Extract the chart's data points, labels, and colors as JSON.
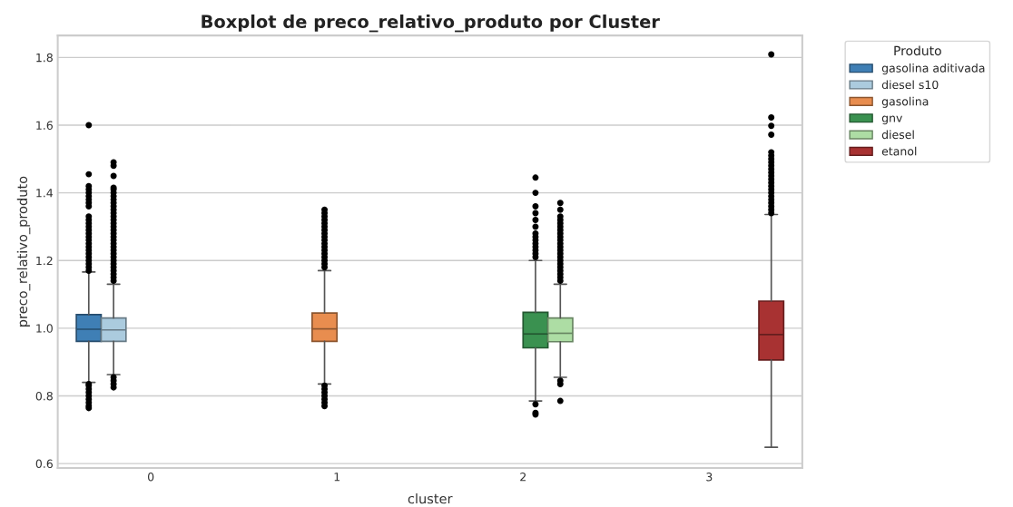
{
  "chart_data": {
    "type": "box",
    "title": "Boxplot de preco_relativo_produto por Cluster",
    "xlabel": "cluster",
    "ylabel": "preco_relativo_produto",
    "legend_title": "Produto",
    "legend": "top right",
    "grid": "y",
    "categories": [
      "0",
      "1",
      "2",
      "3"
    ],
    "ylim": [
      0.587,
      1.865
    ],
    "yticks": [
      {
        "value": 0.6,
        "label": "0.6"
      },
      {
        "value": 0.8,
        "label": "0.8"
      },
      {
        "value": 1.0,
        "label": "1.0"
      },
      {
        "value": 1.2,
        "label": "1.2"
      },
      {
        "value": 1.4,
        "label": "1.4"
      },
      {
        "value": 1.6,
        "label": "1.6"
      },
      {
        "value": 1.8,
        "label": "1.8"
      }
    ],
    "series": [
      {
        "name": "gasolina aditivada",
        "color": "#3f7fb5",
        "boxes": [
          {
            "low": 0.84,
            "q1": 0.961,
            "median": 0.997,
            "q3": 1.04,
            "high": 1.166,
            "outliers": [
              1.6,
              1.455,
              1.42,
              1.41,
              1.4,
              1.39,
              1.38,
              1.37,
              1.36,
              1.33,
              1.32,
              1.31,
              1.3,
              1.29,
              1.28,
              1.27,
              1.26,
              1.25,
              1.24,
              1.23,
              1.22,
              1.21,
              1.2,
              1.19,
              1.18,
              1.17,
              0.835,
              0.83,
              0.82,
              0.81,
              0.8,
              0.79,
              0.78,
              0.77,
              0.764
            ]
          },
          null,
          null,
          null
        ]
      },
      {
        "name": "diesel s10",
        "color": "#abcbde",
        "boxes": [
          {
            "low": 0.863,
            "q1": 0.961,
            "median": 0.995,
            "q3": 1.03,
            "high": 1.13,
            "outliers": [
              1.49,
              1.48,
              1.45,
              1.415,
              1.41,
              1.4,
              1.39,
              1.38,
              1.37,
              1.36,
              1.35,
              1.34,
              1.33,
              1.32,
              1.31,
              1.3,
              1.29,
              1.28,
              1.27,
              1.26,
              1.25,
              1.24,
              1.23,
              1.22,
              1.21,
              1.2,
              1.19,
              1.18,
              1.17,
              1.16,
              1.15,
              1.14,
              0.855,
              0.845,
              0.835,
              0.825
            ]
          },
          null,
          null,
          null
        ]
      },
      {
        "name": "gasolina",
        "color": "#e88d4f",
        "boxes": [
          null,
          {
            "low": 0.835,
            "q1": 0.961,
            "median": 0.998,
            "q3": 1.045,
            "high": 1.17,
            "outliers": [
              1.35,
              1.34,
              1.33,
              1.32,
              1.31,
              1.3,
              1.29,
              1.28,
              1.27,
              1.26,
              1.25,
              1.24,
              1.23,
              1.22,
              1.21,
              1.2,
              1.19,
              1.18,
              0.83,
              0.82,
              0.81,
              0.8,
              0.79,
              0.78,
              0.77
            ]
          },
          null,
          null
        ]
      },
      {
        "name": "gnv",
        "color": "#3a9150",
        "boxes": [
          null,
          null,
          {
            "low": 0.785,
            "q1": 0.942,
            "median": 0.983,
            "q3": 1.047,
            "high": 1.2,
            "outliers": [
              1.445,
              1.4,
              1.36,
              1.34,
              1.32,
              1.3,
              1.28,
              1.27,
              1.26,
              1.25,
              1.24,
              1.23,
              1.22,
              1.21,
              0.775,
              0.75,
              0.745
            ]
          },
          null
        ]
      },
      {
        "name": "diesel",
        "color": "#addda4",
        "boxes": [
          null,
          null,
          {
            "low": 0.855,
            "q1": 0.96,
            "median": 0.985,
            "q3": 1.03,
            "high": 1.13,
            "outliers": [
              1.37,
              1.35,
              1.33,
              1.32,
              1.31,
              1.3,
              1.29,
              1.28,
              1.27,
              1.26,
              1.25,
              1.24,
              1.23,
              1.22,
              1.21,
              1.2,
              1.19,
              1.18,
              1.17,
              1.16,
              1.15,
              1.14,
              0.845,
              0.835,
              0.785
            ]
          },
          null
        ]
      },
      {
        "name": "etanol",
        "color": "#a83232",
        "boxes": [
          null,
          null,
          null,
          {
            "low": 0.648,
            "q1": 0.906,
            "median": 0.981,
            "q3": 1.08,
            "high": 1.336,
            "outliers": [
              1.809,
              1.623,
              1.598,
              1.572,
              1.52,
              1.51,
              1.5,
              1.49,
              1.48,
              1.47,
              1.46,
              1.45,
              1.44,
              1.43,
              1.42,
              1.41,
              1.4,
              1.39,
              1.38,
              1.37,
              1.36,
              1.35,
              1.34
            ]
          }
        ]
      }
    ]
  }
}
